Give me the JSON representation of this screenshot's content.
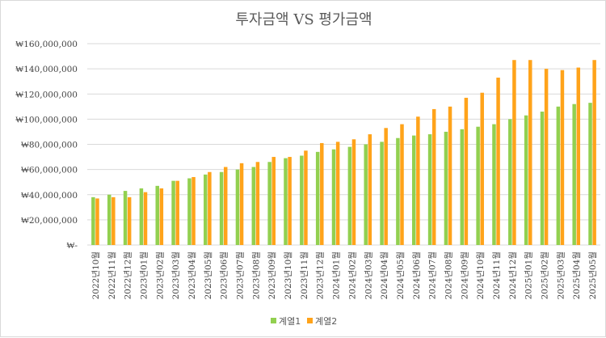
{
  "chart_data": {
    "type": "bar",
    "title": "투자금액 VS 평가금액",
    "xlabel": "",
    "ylabel": "",
    "ylim": [
      0,
      160000000
    ],
    "y_ticks": [
      {
        "value": 0,
        "label": "₩-"
      },
      {
        "value": 20000000,
        "label": "₩20,000,000"
      },
      {
        "value": 40000000,
        "label": "₩40,000,000"
      },
      {
        "value": 60000000,
        "label": "₩60,000,000"
      },
      {
        "value": 80000000,
        "label": "₩80,000,000"
      },
      {
        "value": 100000000,
        "label": "₩100,000,000"
      },
      {
        "value": 120000000,
        "label": "₩120,000,000"
      },
      {
        "value": 140000000,
        "label": "₩140,000,000"
      },
      {
        "value": 160000000,
        "label": "₩160,000,000"
      }
    ],
    "grid": true,
    "legend_position": "bottom",
    "categories": [
      "2022년10월",
      "2022년11월",
      "2022년12월",
      "2023년01월",
      "2023년02월",
      "2023년03월",
      "2023년04월",
      "2023년05월",
      "2023년06월",
      "2023년07월",
      "2023년08월",
      "2023년09월",
      "2023년10월",
      "2023년11월",
      "2023년12월",
      "2024년01월",
      "2024년02월",
      "2024년03월",
      "2024년04월",
      "2024년05월",
      "2024년06월",
      "2024년07월",
      "2024년08월",
      "2024년09월",
      "2024년10월",
      "2024년11월",
      "2024년12월",
      "2025년01월",
      "2025년02월",
      "2025년03월",
      "2025년04월",
      "2025년05월"
    ],
    "series": [
      {
        "name": "계열1",
        "color": "#92d050",
        "values": [
          38000000,
          40000000,
          43000000,
          45000000,
          47000000,
          51000000,
          53000000,
          56000000,
          58000000,
          60000000,
          62000000,
          66000000,
          69000000,
          71000000,
          74000000,
          76000000,
          78000000,
          80000000,
          82000000,
          85000000,
          87000000,
          88000000,
          90000000,
          92000000,
          94000000,
          96000000,
          100000000,
          103000000,
          106000000,
          110000000,
          112000000,
          113000000
        ]
      },
      {
        "name": "계열2",
        "color": "#ffa31a",
        "values": [
          37000000,
          38000000,
          38000000,
          42000000,
          45000000,
          51000000,
          54000000,
          58000000,
          62000000,
          65000000,
          66000000,
          70000000,
          70000000,
          75000000,
          81000000,
          82000000,
          84000000,
          88000000,
          93000000,
          96000000,
          102000000,
          108000000,
          110000000,
          117000000,
          121000000,
          133000000,
          147000000,
          147000000,
          140000000,
          139000000,
          141000000,
          147000000
        ]
      }
    ]
  }
}
